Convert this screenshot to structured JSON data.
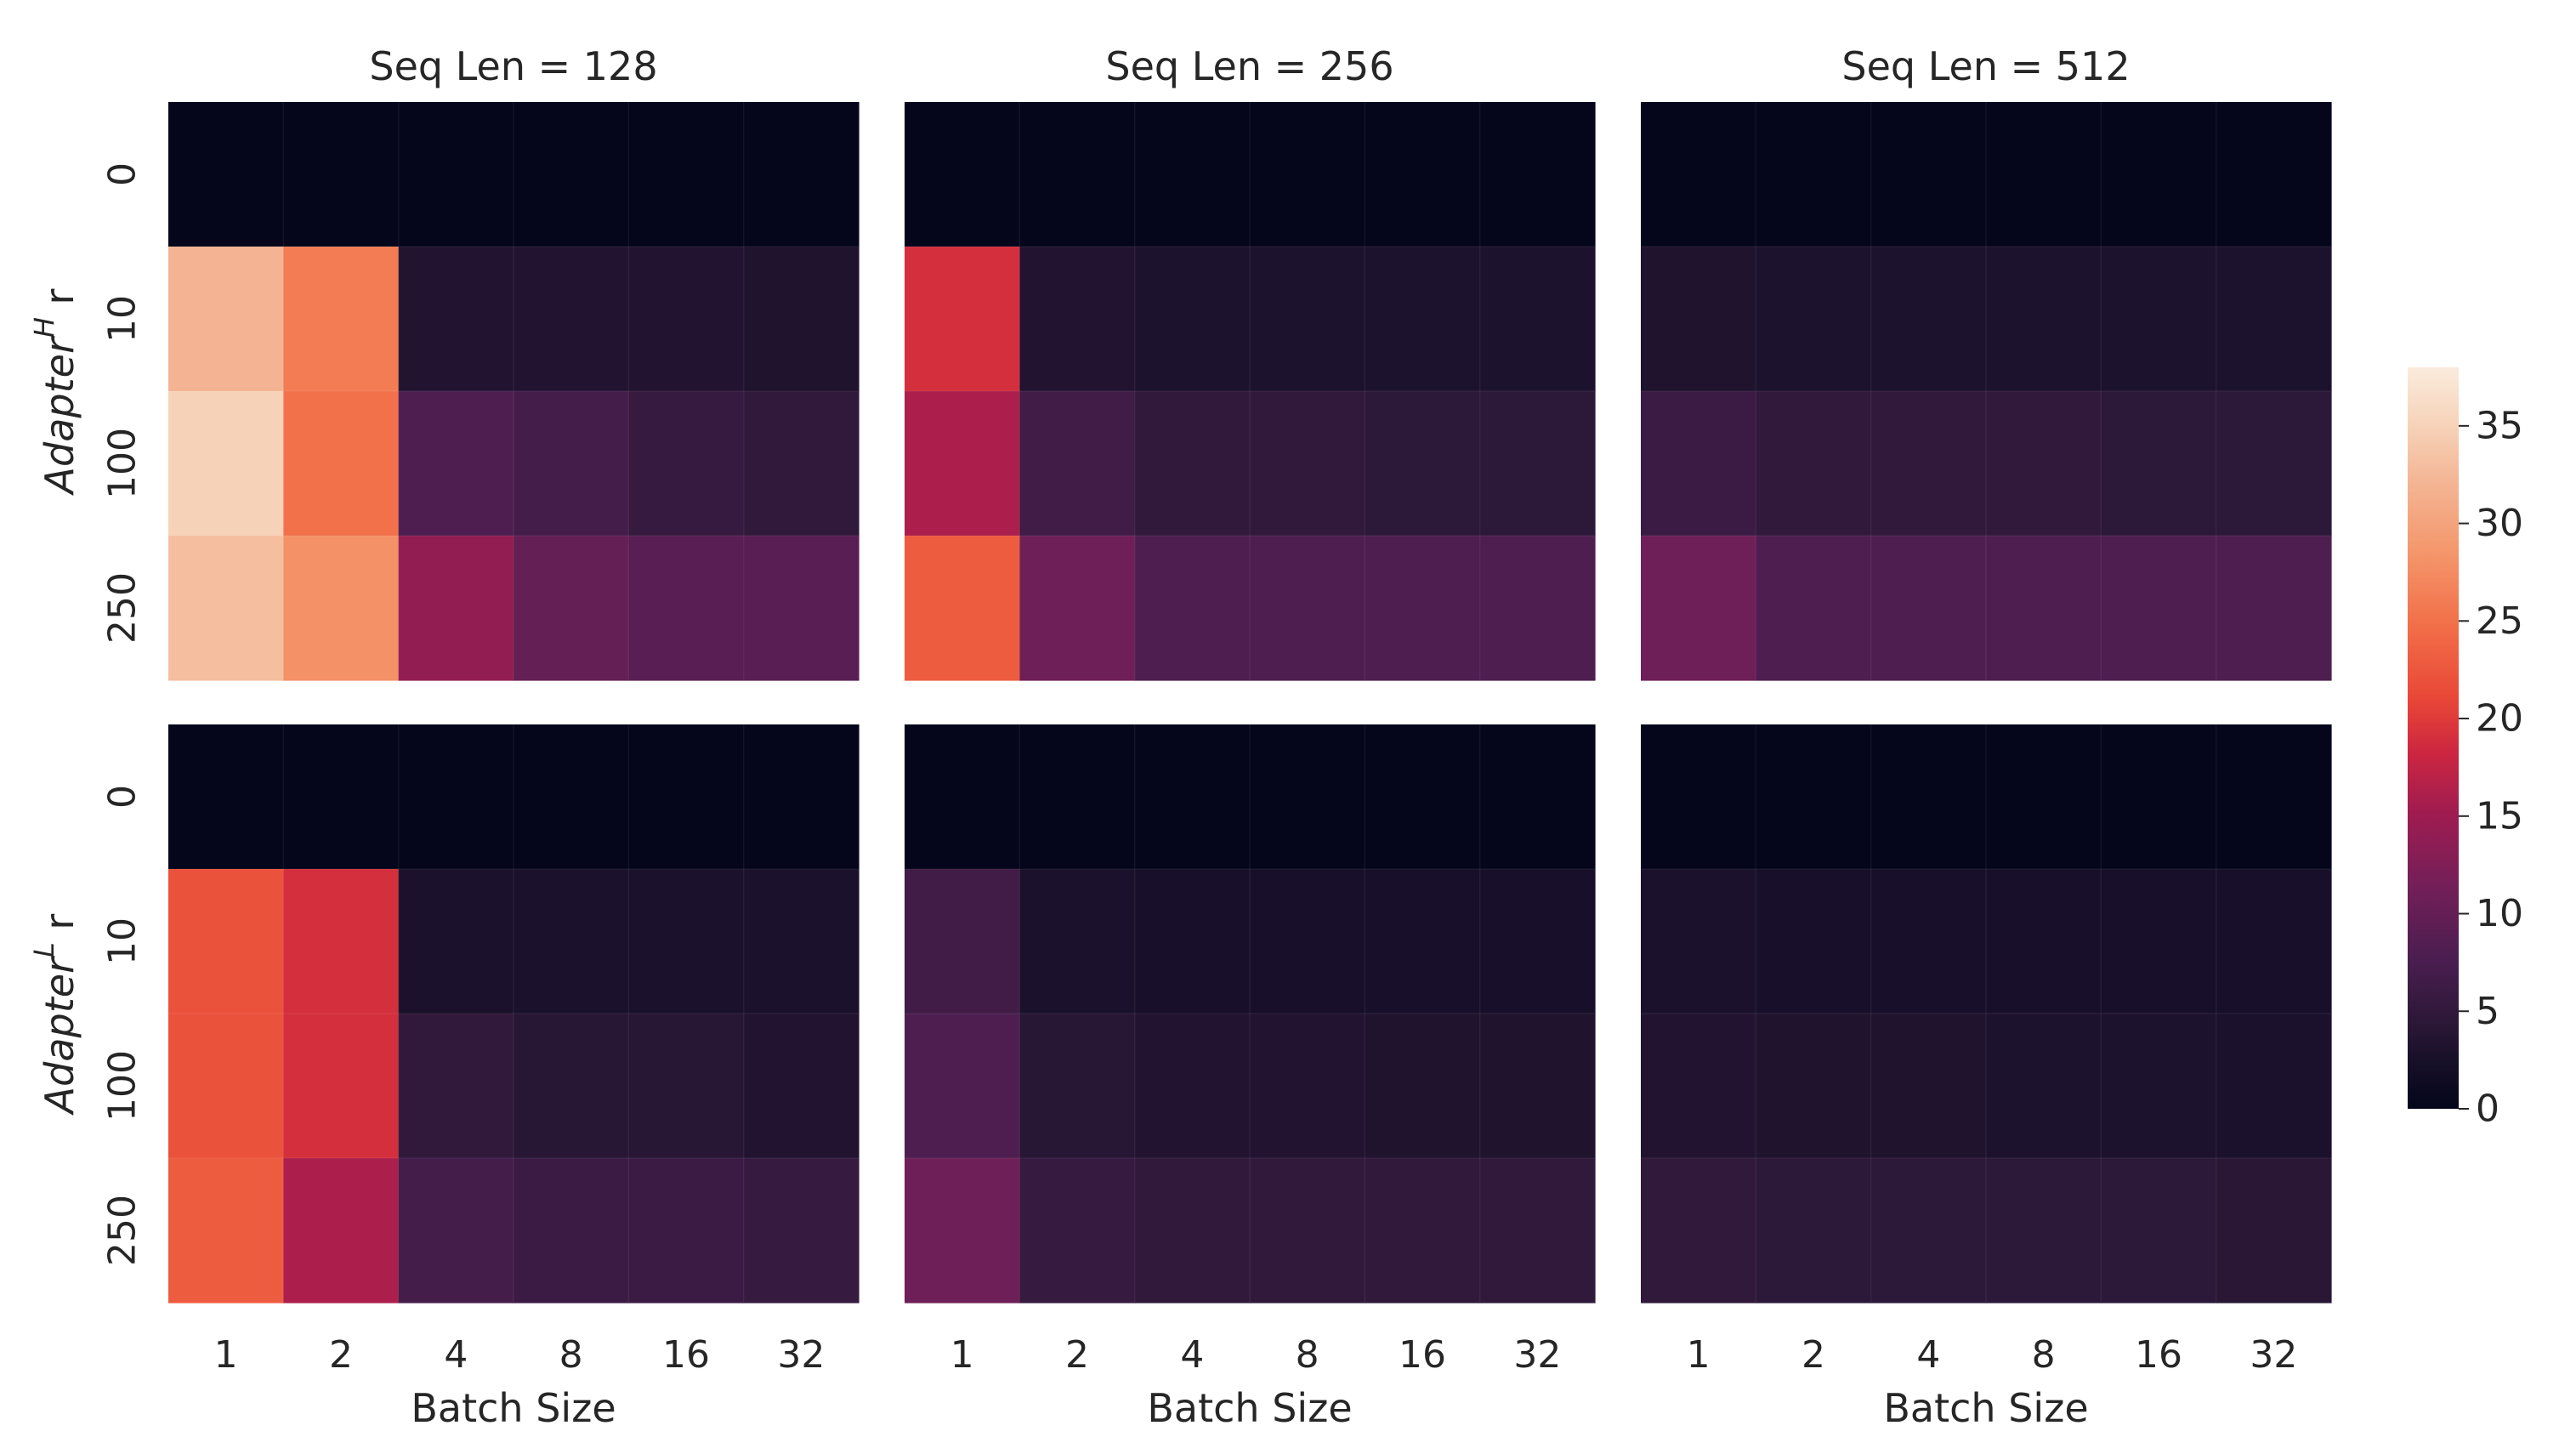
{
  "chart_data": {
    "type": "heatmap",
    "x_label": "Batch Size",
    "x_categories": [
      "1",
      "2",
      "4",
      "8",
      "16",
      "32"
    ],
    "y_categories": [
      "0",
      "10",
      "100",
      "250"
    ],
    "colormap": "rocket",
    "color_range": [
      0,
      38
    ],
    "colorbar_ticks": [
      "0",
      "5",
      "10",
      "15",
      "20",
      "25",
      "30",
      "35"
    ],
    "column_titles": [
      "Seq Len = 128",
      "Seq Len = 256",
      "Seq Len = 512"
    ],
    "rows": [
      {
        "ylabel_base": "Adapter",
        "ylabel_sup": "H",
        "ylabel_suffix": " r",
        "panels": [
          {
            "title": "Seq Len = 128",
            "values": [
              [
                0.2,
                0.2,
                0.2,
                0.2,
                0.2,
                0.2
              ],
              [
                32,
                26,
                3.5,
                3.5,
                3.5,
                3.2
              ],
              [
                35,
                25,
                8,
                7,
                5.5,
                5
              ],
              [
                33,
                28,
                14,
                10,
                9,
                9
              ]
            ]
          },
          {
            "title": "Seq Len = 256",
            "values": [
              [
                0.2,
                0.2,
                0.2,
                0.2,
                0.2,
                0.2
              ],
              [
                19,
                3.5,
                3,
                3,
                3,
                3
              ],
              [
                16,
                6.5,
                5,
                5,
                4.5,
                4.5
              ],
              [
                23,
                11,
                8,
                8,
                8,
                8
              ]
            ]
          },
          {
            "title": "Seq Len = 512",
            "values": [
              [
                0.2,
                0.2,
                0.2,
                0.2,
                0.2,
                0.2
              ],
              [
                3.2,
                3,
                3,
                3,
                3,
                3
              ],
              [
                6,
                5,
                5,
                5,
                4.5,
                4.5
              ],
              [
                11,
                8,
                8,
                8,
                8,
                8
              ]
            ]
          }
        ]
      },
      {
        "ylabel_base": "Adapter",
        "ylabel_sup": "L",
        "ylabel_suffix": " r",
        "panels": [
          {
            "title": "",
            "values": [
              [
                0.2,
                0.2,
                0.2,
                0.2,
                0.2,
                0.2
              ],
              [
                22,
                19,
                2.8,
                2.8,
                2.8,
                2.8
              ],
              [
                22,
                19,
                5,
                4,
                4,
                3.5
              ],
              [
                23,
                16,
                7,
                6,
                6,
                5.5
              ]
            ]
          },
          {
            "title": "",
            "values": [
              [
                0.2,
                0.2,
                0.2,
                0.2,
                0.2,
                0.2
              ],
              [
                6.5,
                2.8,
                2.5,
                2.5,
                2.5,
                2.5
              ],
              [
                8,
                4,
                3.5,
                3.5,
                3.2,
                3.2
              ],
              [
                11,
                5.5,
                5,
                5,
                5,
                5
              ]
            ]
          },
          {
            "title": "",
            "values": [
              [
                0.2,
                0.2,
                0.2,
                0.2,
                0.2,
                0.2
              ],
              [
                2.8,
                2.5,
                2.5,
                2.5,
                2.5,
                2.5
              ],
              [
                3.5,
                3.2,
                3.2,
                3,
                3,
                2.8
              ],
              [
                5,
                4.5,
                4.5,
                4.5,
                4.5,
                4.2
              ]
            ]
          }
        ]
      }
    ]
  }
}
